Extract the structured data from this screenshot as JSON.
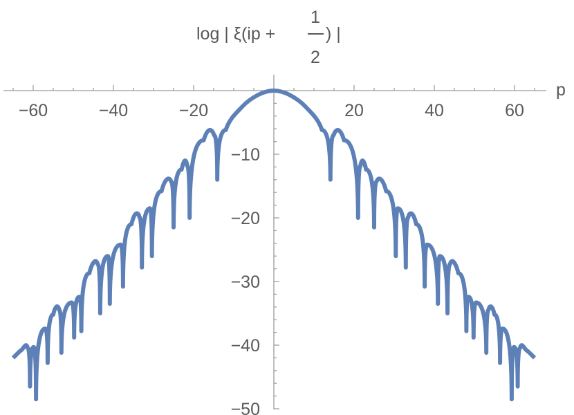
{
  "chart_data": {
    "type": "line",
    "title": "",
    "xlabel": "p",
    "ylabel": {
      "prefix": "log | ξ(ip +",
      "frac_numerator": "1",
      "frac_denominator": "2",
      "suffix": ") |"
    },
    "xlim": [
      -65,
      65
    ],
    "ylim": [
      -52,
      2
    ],
    "x_ticks": [
      -60,
      -40,
      -20,
      20,
      40,
      60
    ],
    "x_tick_labels": [
      "−60",
      "−40",
      "−20",
      "20",
      "40",
      "60"
    ],
    "y_ticks": [
      -10,
      -20,
      -30,
      -40,
      -50
    ],
    "y_tick_labels": [
      "−10",
      "−20",
      "−30",
      "−40",
      "−50"
    ],
    "grid": false,
    "line_color": "#5d80b6",
    "peak": {
      "x": 0,
      "y": 0
    },
    "zeros": [
      {
        "x": 14.1,
        "depth": -14.0
      },
      {
        "x": 21.0,
        "depth": -20.0
      },
      {
        "x": 25.0,
        "depth": -21.5
      },
      {
        "x": 30.4,
        "depth": -26.0
      },
      {
        "x": 32.9,
        "depth": -27.8
      },
      {
        "x": 37.6,
        "depth": -30.8
      },
      {
        "x": 40.9,
        "depth": -33.5
      },
      {
        "x": 43.3,
        "depth": -35.0
      },
      {
        "x": 48.0,
        "depth": -37.8
      },
      {
        "x": 49.8,
        "depth": -38.8
      },
      {
        "x": 52.97,
        "depth": -41.2
      },
      {
        "x": 56.4,
        "depth": -42.8
      },
      {
        "x": 59.3,
        "depth": -48.5
      },
      {
        "x": 60.8,
        "depth": -46.5
      }
    ],
    "endpoint": {
      "x": 65,
      "y": -42.0
    },
    "series": [
      {
        "values_description": "",
        "points": [
          [
            0,
            0
          ],
          [
            4,
            -0.7
          ],
          [
            8,
            -2.6
          ],
          [
            12,
            -6.2
          ],
          [
            14.1,
            -14.0
          ],
          [
            14.9,
            -7.0
          ],
          [
            17.5,
            -7.8
          ],
          [
            21.0,
            -20.0
          ],
          [
            21.6,
            -11.8
          ],
          [
            23.0,
            -12.4
          ],
          [
            25.0,
            -21.5
          ],
          [
            25.6,
            -14.3
          ],
          [
            28.0,
            -15.8
          ],
          [
            30.4,
            -26.0
          ],
          [
            30.9,
            -18.5
          ],
          [
            32.9,
            -27.8
          ],
          [
            33.5,
            -19.9
          ],
          [
            35.5,
            -21.0
          ],
          [
            37.6,
            -30.8
          ],
          [
            38.2,
            -24.2
          ],
          [
            40.9,
            -33.5
          ],
          [
            41.4,
            -26.0
          ],
          [
            43.3,
            -35.0
          ],
          [
            43.9,
            -27.3
          ],
          [
            46.0,
            -28.7
          ],
          [
            48.0,
            -37.8
          ],
          [
            48.5,
            -32.4
          ],
          [
            49.8,
            -38.8
          ],
          [
            50.4,
            -33.3
          ],
          [
            52.97,
            -41.2
          ],
          [
            53.5,
            -34.5
          ],
          [
            55.0,
            -35.2
          ],
          [
            56.4,
            -42.8
          ],
          [
            57.0,
            -37.4
          ],
          [
            59.3,
            -48.5
          ],
          [
            59.9,
            -40.3
          ],
          [
            60.8,
            -46.5
          ],
          [
            61.4,
            -40.4
          ],
          [
            63.0,
            -40.8
          ],
          [
            65,
            -42.0
          ]
        ]
      }
    ]
  }
}
